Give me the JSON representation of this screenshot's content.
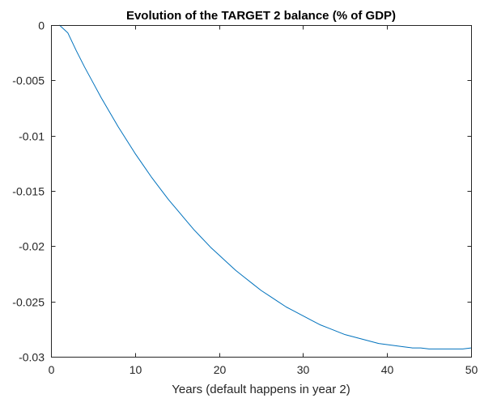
{
  "chart_data": {
    "type": "line",
    "title": "Evolution of the TARGET 2 balance (% of GDP)",
    "xlabel": "Years (default happens in year 2)",
    "ylabel": "",
    "xlim": [
      0,
      50
    ],
    "ylim": [
      -0.03,
      0
    ],
    "xticks": [
      0,
      10,
      20,
      30,
      40,
      50
    ],
    "xtick_labels": [
      "0",
      "10",
      "20",
      "30",
      "40",
      "50"
    ],
    "yticks": [
      0,
      -0.005,
      -0.01,
      -0.015,
      -0.02,
      -0.025,
      -0.03
    ],
    "ytick_labels": [
      "0",
      "-0.005",
      "-0.01",
      "-0.015",
      "-0.02",
      "-0.025",
      "-0.03"
    ],
    "grid": false,
    "series": [
      {
        "color": "#0072bd",
        "x": [
          1,
          2,
          3,
          4,
          5,
          6,
          7,
          8,
          9,
          10,
          11,
          12,
          13,
          14,
          15,
          16,
          17,
          18,
          19,
          20,
          21,
          22,
          23,
          24,
          25,
          26,
          27,
          28,
          29,
          30,
          31,
          32,
          33,
          34,
          35,
          36,
          37,
          38,
          39,
          40,
          41,
          42,
          43,
          44,
          45,
          46,
          47,
          48,
          49,
          50
        ],
        "y": [
          0,
          -0.0007,
          -0.0023,
          -0.0038,
          -0.0052,
          -0.0066,
          -0.0079,
          -0.0092,
          -0.0104,
          -0.0116,
          -0.0127,
          -0.0138,
          -0.0148,
          -0.0158,
          -0.0167,
          -0.0176,
          -0.0185,
          -0.0193,
          -0.0201,
          -0.0208,
          -0.0215,
          -0.0222,
          -0.0228,
          -0.0234,
          -0.024,
          -0.0245,
          -0.025,
          -0.0255,
          -0.0259,
          -0.0263,
          -0.0267,
          -0.0271,
          -0.0274,
          -0.0277,
          -0.028,
          -0.0282,
          -0.0284,
          -0.0286,
          -0.0288,
          -0.0289,
          -0.029,
          -0.0291,
          -0.0292,
          -0.0292,
          -0.0293,
          -0.0293,
          -0.0293,
          -0.0293,
          -0.0293,
          -0.0292
        ]
      }
    ]
  }
}
